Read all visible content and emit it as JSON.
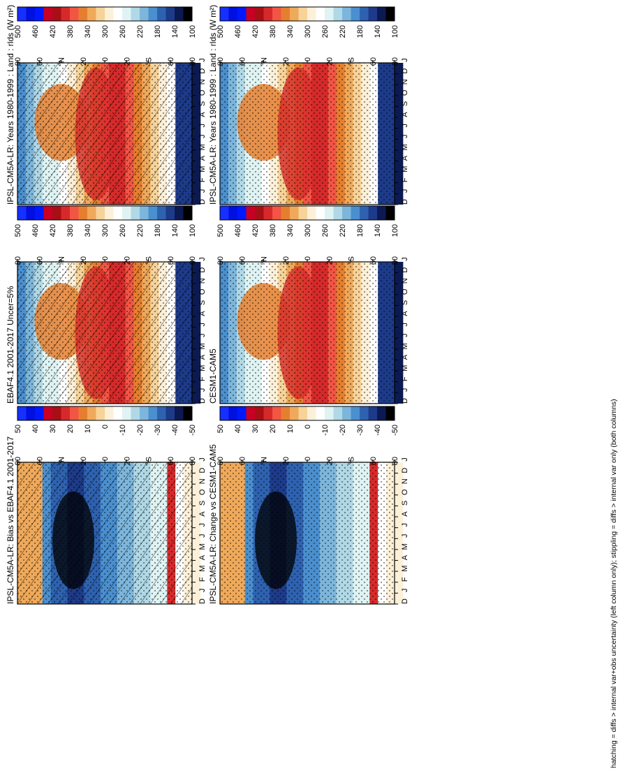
{
  "footnote": "hatching = diffs > internal var+obs uncertainty (left column only); stippling = diffs > internal var only (both columns)",
  "colors": {
    "abs": [
      "#000000",
      "#0c1a52",
      "#1d3b8a",
      "#2e62b0",
      "#4a8fce",
      "#7db6dc",
      "#b0d8e6",
      "#dff3f3",
      "#ffffff",
      "#fdf0d8",
      "#f7d39a",
      "#efa95a",
      "#e57f2f",
      "#f25544",
      "#d62a2a",
      "#a80f15",
      "#c80024",
      "#0018ff",
      "#0010e0",
      "#1530ff"
    ],
    "diff": [
      "#000000",
      "#0c1a52",
      "#1d3b8a",
      "#2e62b0",
      "#4a8fce",
      "#7db6dc",
      "#b0d8e6",
      "#dff3f3",
      "#ffffff",
      "#fdf0d8",
      "#f7d39a",
      "#efa95a",
      "#e57f2f",
      "#f25544",
      "#d62a2a",
      "#a80f15",
      "#c80024",
      "#0018ff",
      "#0010e0",
      "#1530ff"
    ]
  },
  "chart_data": [
    {
      "type": "heatmap",
      "panel": "top-left",
      "title": "IPSL-CM5A-LR: Years 1980-1999 : Land : rlds (W m²)",
      "x_ticks": [
        "D",
        "J",
        "F",
        "M",
        "A",
        "M",
        "J",
        "J",
        "A",
        "S",
        "O",
        "N",
        "D",
        "J"
      ],
      "y_ticks": [
        "80",
        "60",
        "°N",
        "20",
        "0",
        "20",
        "°S",
        "60",
        "80"
      ],
      "colorbar": [
        "500",
        "460",
        "420",
        "380",
        "340",
        "300",
        "260",
        "220",
        "180",
        "140",
        "100"
      ],
      "overlay": "hatching+stippling",
      "scale": "abs"
    },
    {
      "type": "heatmap",
      "panel": "top-right",
      "title": "IPSL-CM5A-LR: Years 1980-1999 : Land : rlds (W m²)",
      "x_ticks": [
        "D",
        "J",
        "F",
        "M",
        "A",
        "M",
        "J",
        "J",
        "A",
        "S",
        "O",
        "N",
        "D",
        "J"
      ],
      "y_ticks": [
        "80",
        "60",
        "°N",
        "20",
        "0",
        "20",
        "°S",
        "60",
        "80"
      ],
      "colorbar": [
        "500",
        "460",
        "420",
        "380",
        "340",
        "300",
        "260",
        "220",
        "180",
        "140",
        "100"
      ],
      "overlay": "stippling",
      "scale": "abs"
    },
    {
      "type": "heatmap",
      "panel": "middle-left",
      "title": "EBAF4.1 2001-2017 Uncer=5%",
      "x_ticks": [
        "D",
        "J",
        "F",
        "M",
        "A",
        "M",
        "J",
        "J",
        "A",
        "S",
        "O",
        "N",
        "D",
        "J"
      ],
      "y_ticks": [
        "80",
        "60",
        "°N",
        "20",
        "0",
        "20",
        "°S",
        "60",
        "80"
      ],
      "colorbar": [
        "500",
        "460",
        "420",
        "380",
        "340",
        "300",
        "260",
        "220",
        "180",
        "140",
        "100"
      ],
      "overlay": "hatching+stippling",
      "scale": "abs"
    },
    {
      "type": "heatmap",
      "panel": "middle-right",
      "title": "CESM1-CAM5",
      "x_ticks": [
        "D",
        "J",
        "F",
        "M",
        "A",
        "M",
        "J",
        "J",
        "A",
        "S",
        "O",
        "N",
        "D",
        "J"
      ],
      "y_ticks": [
        "80",
        "60",
        "°N",
        "20",
        "0",
        "20",
        "°S",
        "60",
        "80"
      ],
      "colorbar": [
        "500",
        "460",
        "420",
        "380",
        "340",
        "300",
        "260",
        "220",
        "180",
        "140",
        "100"
      ],
      "overlay": "stippling",
      "scale": "abs"
    },
    {
      "type": "heatmap",
      "panel": "bottom-left",
      "title": "IPSL-CM5A-LR: Bias vs EBAF4.1 2001-2017",
      "x_ticks": [
        "D",
        "J",
        "F",
        "M",
        "A",
        "M",
        "J",
        "J",
        "A",
        "S",
        "O",
        "N",
        "D",
        "J"
      ],
      "y_ticks": [
        "80",
        "60",
        "°N",
        "20",
        "0",
        "20",
        "°S",
        "60",
        "80"
      ],
      "colorbar": [
        "50",
        "40",
        "30",
        "20",
        "10",
        "0",
        "-10",
        "-20",
        "-30",
        "-40",
        "-50"
      ],
      "overlay": "hatching+stippling",
      "scale": "diff"
    },
    {
      "type": "heatmap",
      "panel": "bottom-right",
      "title": "IPSL-CM5A-LR: Change vs CESM1-CAM5",
      "x_ticks": [
        "D",
        "J",
        "F",
        "M",
        "A",
        "M",
        "J",
        "J",
        "A",
        "S",
        "O",
        "N",
        "D",
        "J"
      ],
      "y_ticks": [
        "80",
        "60",
        "°N",
        "20",
        "0",
        "20",
        "°S",
        "60",
        "80"
      ],
      "colorbar": [
        "50",
        "40",
        "30",
        "20",
        "10",
        "0",
        "-10",
        "-20",
        "-30",
        "-40",
        "-50"
      ],
      "overlay": "stippling",
      "scale": "diff"
    }
  ]
}
